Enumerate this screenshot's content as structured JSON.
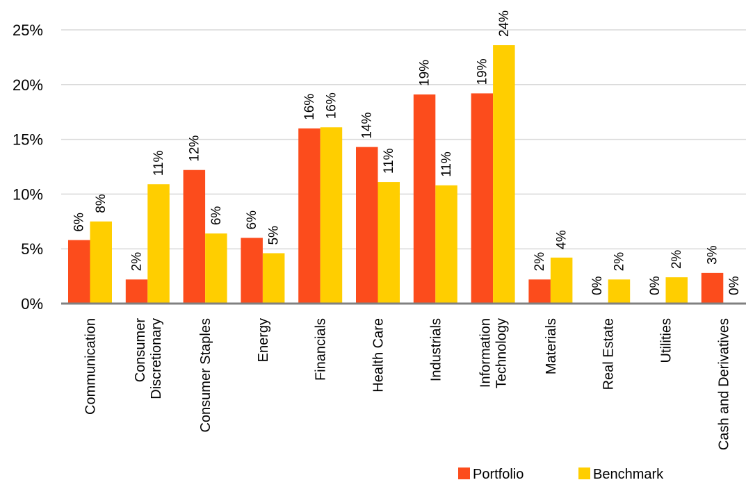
{
  "chart_data": {
    "type": "bar",
    "title": "",
    "xlabel": "",
    "ylabel": "",
    "ylim": [
      0,
      25
    ],
    "y_ticks": [
      {
        "value": 0,
        "label": "0%"
      },
      {
        "value": 5,
        "label": "5%"
      },
      {
        "value": 10,
        "label": "10%"
      },
      {
        "value": 15,
        "label": "15%"
      },
      {
        "value": 20,
        "label": "20%"
      },
      {
        "value": 25,
        "label": "25%"
      }
    ],
    "grid": true,
    "legend_position": "bottom-right",
    "categories": [
      [
        "Communication"
      ],
      [
        "Consumer",
        "Discretionary"
      ],
      [
        "Consumer Staples"
      ],
      [
        "Energy"
      ],
      [
        "Financials"
      ],
      [
        "Health Care"
      ],
      [
        "Industrials"
      ],
      [
        "Information",
        "Technology"
      ],
      [
        "Materials"
      ],
      [
        "Real Estate"
      ],
      [
        "Utilities"
      ],
      [
        "Cash and Derivatives"
      ]
    ],
    "series": [
      {
        "name": "Portfolio",
        "color": "#FC4C1C",
        "values": [
          5.8,
          2.2,
          12.2,
          6.0,
          16.0,
          14.3,
          19.1,
          19.2,
          2.2,
          0,
          0,
          2.8
        ],
        "labels": [
          "6%",
          "2%",
          "12%",
          "6%",
          "16%",
          "14%",
          "19%",
          "19%",
          "2%",
          "0%",
          "0%",
          "3%"
        ]
      },
      {
        "name": "Benchmark",
        "color": "#FFCE00",
        "values": [
          7.5,
          10.9,
          6.4,
          4.6,
          16.1,
          11.1,
          10.8,
          23.6,
          4.2,
          2.2,
          2.4,
          0
        ],
        "labels": [
          "8%",
          "11%",
          "6%",
          "5%",
          "16%",
          "11%",
          "11%",
          "24%",
          "4%",
          "2%",
          "2%",
          "0%"
        ]
      }
    ]
  }
}
